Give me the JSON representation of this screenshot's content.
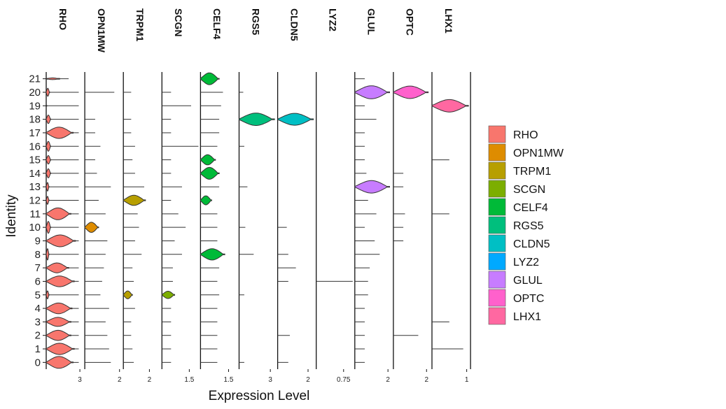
{
  "chart_data": {
    "type": "violin",
    "title": "",
    "xlabel": "Expression Level",
    "ylabel": "Identity",
    "identities": [
      "0",
      "1",
      "2",
      "3",
      "4",
      "5",
      "6",
      "7",
      "8",
      "9",
      "10",
      "11",
      "12",
      "13",
      "14",
      "15",
      "16",
      "17",
      "18",
      "19",
      "20",
      "21"
    ],
    "panels": [
      {
        "gene": "RHO",
        "color": "#F8766D",
        "tick_value": "3",
        "max_value": 3.25,
        "tick_pos": 3,
        "violins": {
          "0": [
            2.4,
            0.42
          ],
          "1": [
            2.5,
            0.4
          ],
          "2": [
            2.2,
            0.36
          ],
          "3": [
            2.2,
            0.32
          ],
          "4": [
            2.3,
            0.38
          ],
          "5": [
            0.25,
            0.28
          ],
          "6": [
            2.5,
            0.38
          ],
          "7": [
            2.0,
            0.35
          ],
          "8": [
            0.25,
            0.4
          ],
          "9": [
            2.6,
            0.42
          ],
          "10": [
            0.4,
            0.42
          ],
          "11": [
            2.2,
            0.42
          ],
          "12": [
            0.25,
            0.28
          ],
          "13": [
            0.25,
            0.3
          ],
          "14": [
            0.4,
            0.32
          ],
          "15": [
            0.4,
            0.3
          ],
          "16": [
            0.4,
            0.35
          ],
          "17": [
            2.4,
            0.4
          ],
          "18": [
            0.4,
            0.3
          ],
          "19": [
            0.05,
            0.05
          ],
          "20": [
            0.3,
            0.28
          ],
          "21": [
            1.2,
            0.06
          ]
        },
        "lines": {
          "0": 2.9,
          "1": 2.9,
          "2": 2.9,
          "3": 2.9,
          "4": 2.9,
          "5": 2.9,
          "6": 2.9,
          "7": 2.9,
          "8": 2.9,
          "9": 2.9,
          "10": 2.9,
          "11": 2.9,
          "12": 2.9,
          "13": 2.9,
          "14": 2.9,
          "15": 2.9,
          "16": 2.9,
          "17": 2.9,
          "18": 2.9,
          "19": 2.9,
          "20": 2.9,
          "21": 2.0
        }
      },
      {
        "gene": "OPN1MW",
        "color": "#DE8C00",
        "tick_value": "2",
        "max_value": 2.1,
        "tick_pos": 2,
        "violins": {
          "10": [
            0.8,
            0.36
          ]
        },
        "lines": {
          "0": 1.5,
          "1": 1.4,
          "2": 1.3,
          "3": 1.2,
          "4": 1.4,
          "5": 0.9,
          "6": 1.0,
          "7": 1.1,
          "8": 1.2,
          "9": 1.3,
          "11": 1.2,
          "12": 0.8,
          "13": 1.5,
          "14": 0.7,
          "15": 0.6,
          "16": 0.9,
          "17": 0.6,
          "18": 0.6,
          "20": 1.7
        }
      },
      {
        "gene": "TRPM1",
        "color": "#B79F00",
        "tick_value": "2",
        "max_value": 2.8,
        "tick_pos": 2,
        "violins": {
          "12": [
            1.7,
            0.36
          ],
          "5": [
            0.7,
            0.28
          ]
        },
        "lines": {
          "0": 0.8,
          "1": 0.7,
          "2": 0.6,
          "3": 0.6,
          "4": 0.9,
          "6": 0.8,
          "7": 0.7,
          "8": 1.4,
          "9": 0.9,
          "10": 1.2,
          "11": 1.1,
          "13": 1.6,
          "14": 0.9,
          "15": 0.7,
          "16": 0.9,
          "17": 0.6,
          "18": 0.6,
          "20": 0.6
        }
      },
      {
        "gene": "SCGN",
        "color": "#7CAE00",
        "tick_value": "1.5",
        "max_value": 2.0,
        "tick_pos": 1.5,
        "violins": {
          "5": [
            0.7,
            0.26
          ]
        },
        "lines": {
          "0": 0.5,
          "1": 0.5,
          "2": 0.5,
          "3": 0.5,
          "4": 0.5,
          "6": 0.6,
          "7": 0.6,
          "8": 1.1,
          "9": 0.7,
          "10": 1.3,
          "11": 0.9,
          "12": 0.5,
          "13": 1.1,
          "14": 0.5,
          "15": 0.5,
          "16": 2.0,
          "17": 0.5,
          "18": 0.5,
          "19": 1.6,
          "20": 0.5
        }
      },
      {
        "gene": "CELF4",
        "color": "#00BA38",
        "tick_value": "1.5",
        "max_value": 1.95,
        "tick_pos": 1.5,
        "violins": {
          "21": [
            1.0,
            0.42
          ],
          "15": [
            0.8,
            0.36
          ],
          "14": [
            1.0,
            0.42
          ],
          "12": [
            0.6,
            0.32
          ],
          "8": [
            1.3,
            0.4
          ]
        },
        "lines": {
          "0": 0.9,
          "1": 0.9,
          "2": 0.9,
          "3": 0.9,
          "4": 0.9,
          "5": 1.0,
          "6": 0.9,
          "7": 1.0,
          "9": 0.9,
          "10": 0.9,
          "11": 0.9,
          "13": 1.0,
          "16": 0.9,
          "17": 1.0,
          "18": 1.0,
          "19": 1.1,
          "20": 1.2
        }
      },
      {
        "gene": "RGS5",
        "color": "#00BF7D",
        "tick_value": "3",
        "max_value": 3.5,
        "tick_pos": 3,
        "violins": {
          "18": [
            3.4,
            0.44
          ]
        },
        "lines": {
          "0": 0.5,
          "5": 0.5,
          "8": 1.4,
          "10": 0.6,
          "13": 0.8,
          "16": 0.5,
          "20": 0.4
        }
      },
      {
        "gene": "CLDN5",
        "color": "#00BFC4",
        "tick_value": "2",
        "max_value": 2.4,
        "tick_pos": 2,
        "violins": {
          "18": [
            2.35,
            0.42
          ]
        },
        "lines": {
          "0": 0.7,
          "2": 0.8,
          "6": 0.7,
          "7": 1.2,
          "8": 0.7,
          "10": 0.6
        }
      },
      {
        "gene": "LYZ2",
        "color": "#00A9FF",
        "tick_value": "0.75",
        "max_value": 1.0,
        "tick_pos": 0.75,
        "violins": {},
        "lines": {
          "6": 1.0
        }
      },
      {
        "gene": "GLUL",
        "color": "#C77CFF",
        "tick_value": "2",
        "max_value": 2.2,
        "tick_pos": 2,
        "violins": {
          "20": [
            2.1,
            0.46
          ],
          "13": [
            2.1,
            0.44
          ]
        },
        "lines": {
          "0": 0.6,
          "1": 0.6,
          "2": 0.6,
          "3": 0.6,
          "4": 0.6,
          "5": 0.8,
          "6": 0.8,
          "7": 0.9,
          "8": 1.5,
          "9": 1.2,
          "10": 0.6,
          "11": 1.3,
          "12": 0.8,
          "14": 0.7,
          "15": 0.6,
          "16": 0.6,
          "17": 0.6,
          "18": 1.3,
          "19": 0.6,
          "21": 0.6
        }
      },
      {
        "gene": "OPTC",
        "color": "#FF61CC",
        "tick_value": "2",
        "max_value": 2.2,
        "tick_pos": 2,
        "violins": {
          "20": [
            2.1,
            0.44
          ]
        },
        "lines": {
          "2": 1.5,
          "9": 0.6,
          "10": 0.6,
          "11": 0.7,
          "13": 0.6,
          "14": 0.6
        }
      },
      {
        "gene": "LHX1",
        "color": "#FF68A1",
        "tick_value": "1",
        "max_value": 1.05,
        "tick_pos": 1,
        "violins": {
          "19": [
            1.05,
            0.44
          ]
        },
        "lines": {
          "1": 0.9,
          "3": 0.5,
          "11": 0.5,
          "15": 0.5
        }
      }
    ],
    "legend": {
      "position": "right",
      "items": [
        {
          "label": "RHO",
          "color": "#F8766D"
        },
        {
          "label": "OPN1MW",
          "color": "#DE8C00"
        },
        {
          "label": "TRPM1",
          "color": "#B79F00"
        },
        {
          "label": "SCGN",
          "color": "#7CAE00"
        },
        {
          "label": "CELF4",
          "color": "#00BA38"
        },
        {
          "label": "RGS5",
          "color": "#00BF7D"
        },
        {
          "label": "CLDN5",
          "color": "#00BFC4"
        },
        {
          "label": "LYZ2",
          "color": "#00A9FF"
        },
        {
          "label": "GLUL",
          "color": "#C77CFF"
        },
        {
          "label": "OPTC",
          "color": "#FF61CC"
        },
        {
          "label": "LHX1",
          "color": "#FF68A1"
        }
      ]
    }
  }
}
